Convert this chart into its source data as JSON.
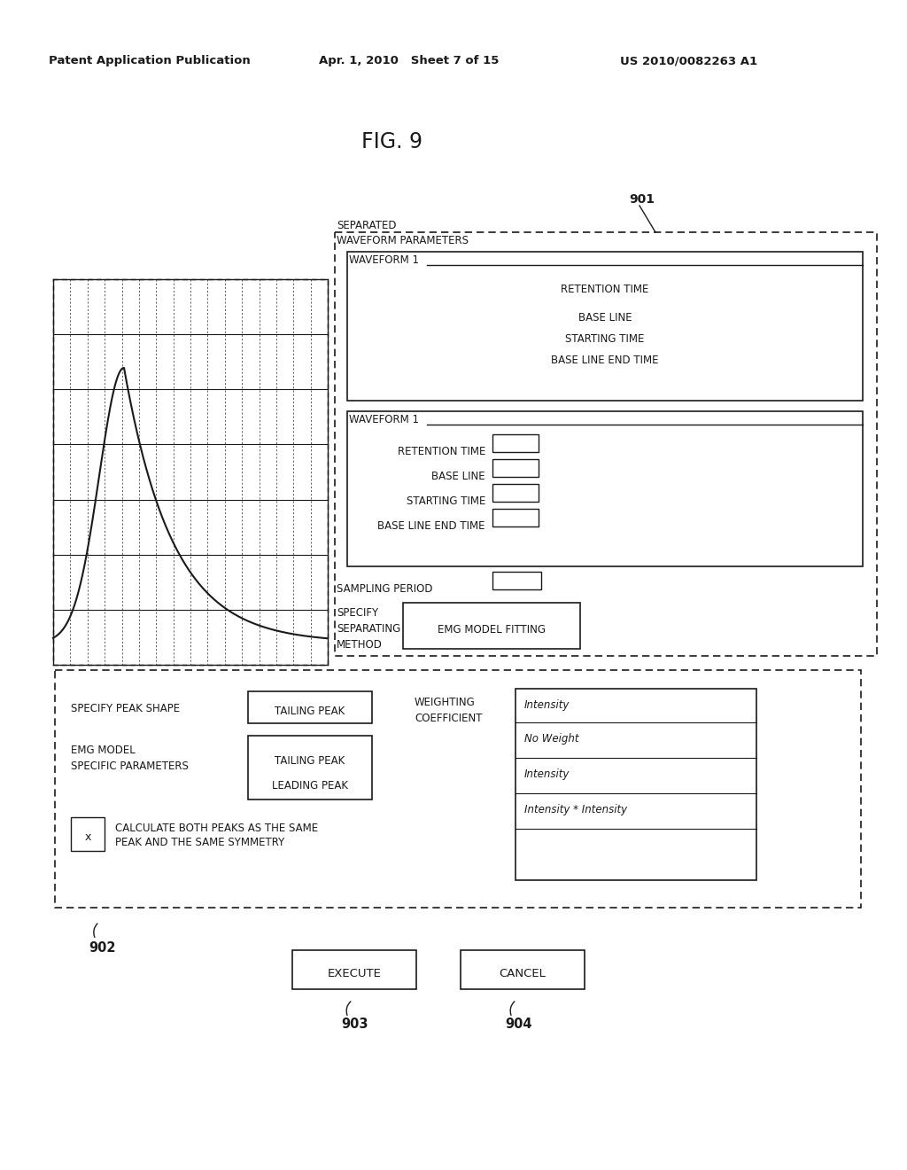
{
  "header_left": "Patent Application Publication",
  "header_center": "Apr. 1, 2010   Sheet 7 of 15",
  "header_right": "US 2010/0082263 A1",
  "fig_title": "FIG. 9",
  "label_901": "901",
  "label_902": "902",
  "label_903": "903",
  "label_904": "904",
  "bg_color": "#ffffff",
  "text_color": "#1a1a1a"
}
